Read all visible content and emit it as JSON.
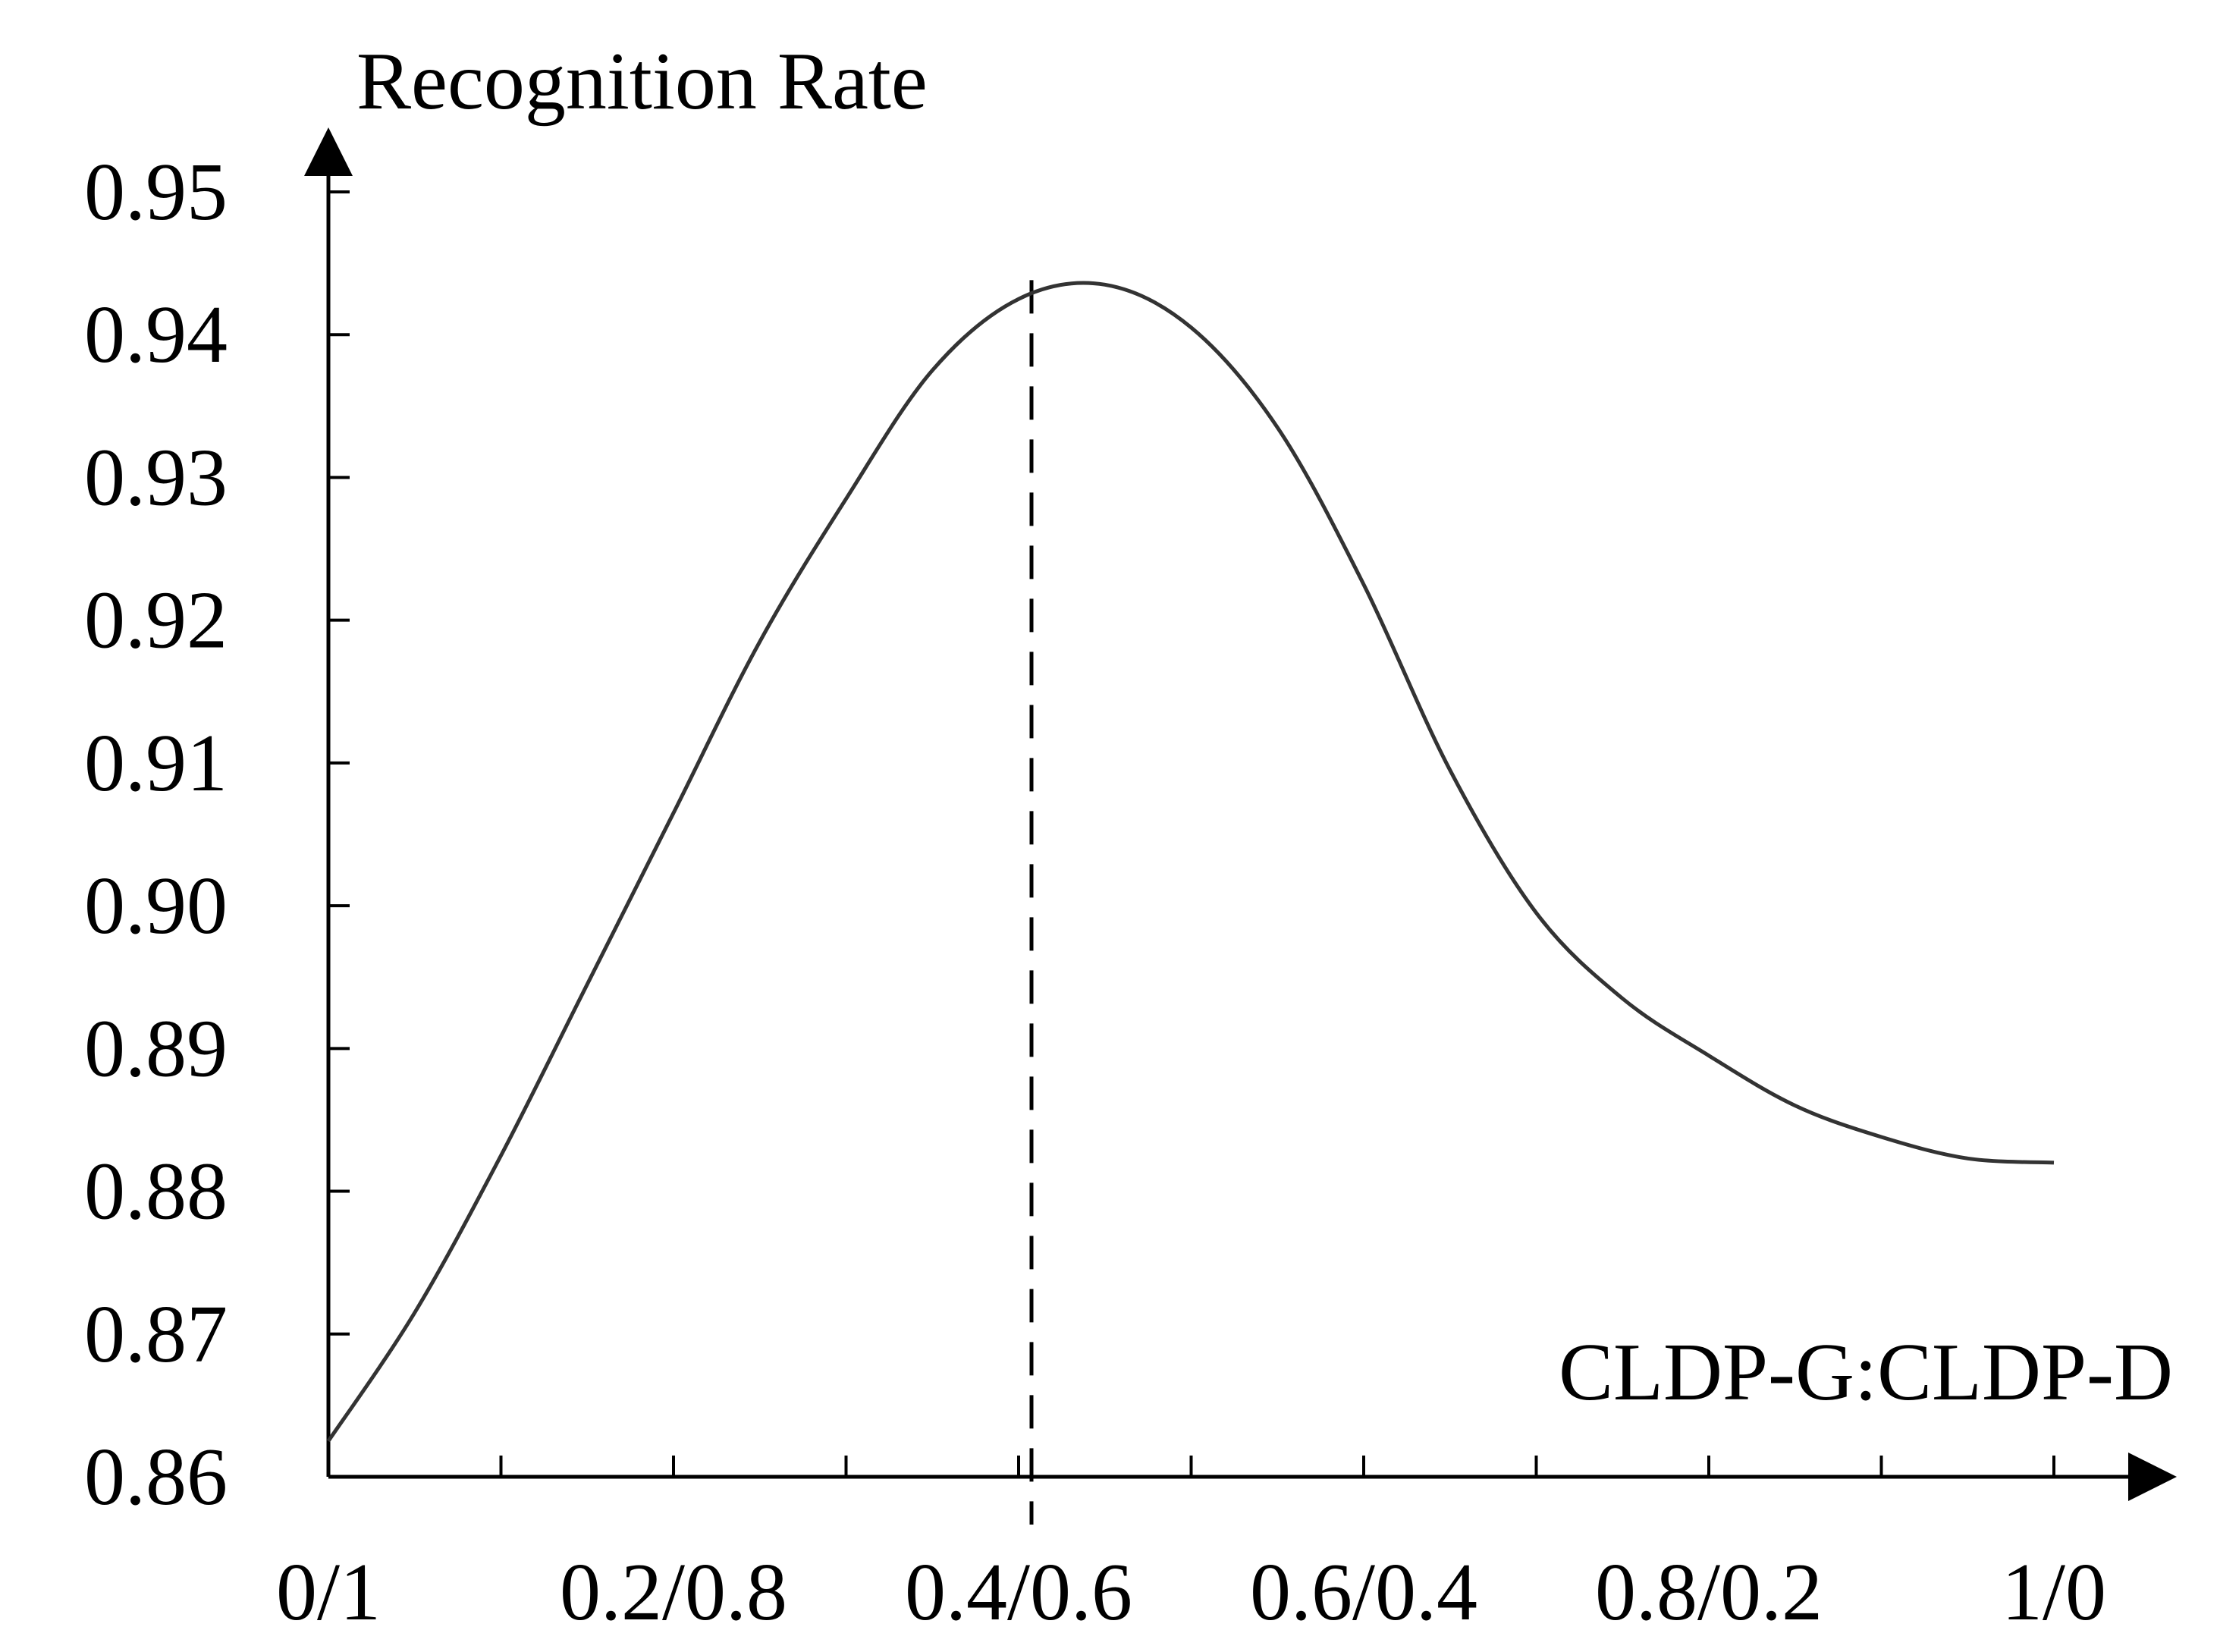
{
  "chart_data": {
    "type": "line",
    "title": "",
    "ylabel": "Recognition Rate",
    "xlabel": "CLDP-G:CLDP-D",
    "xlim": [
      0,
      1
    ],
    "ylim": [
      0.86,
      0.95
    ],
    "yticks": [
      0.86,
      0.87,
      0.88,
      0.89,
      0.9,
      0.91,
      0.92,
      0.93,
      0.94,
      0.95
    ],
    "ytick_labels": [
      "0.86",
      "0.87",
      "0.88",
      "0.89",
      "0.90",
      "0.91",
      "0.92",
      "0.93",
      "0.94",
      "0.95"
    ],
    "xticks": [
      0,
      0.1,
      0.2,
      0.3,
      0.4,
      0.5,
      0.6,
      0.7,
      0.8,
      0.9,
      1.0
    ],
    "xtick_labels": [
      {
        "value": 0,
        "label": "0/1"
      },
      {
        "value": 0.2,
        "label": "0.2/0.8"
      },
      {
        "value": 0.4,
        "label": "0.4/0.6"
      },
      {
        "value": 0.6,
        "label": "0.6/0.4"
      },
      {
        "value": 0.8,
        "label": "0.8/0.2"
      },
      {
        "value": 1.0,
        "label": "1/0"
      }
    ],
    "grid": false,
    "series": [
      {
        "name": "Recognition Rate",
        "color": "#333333",
        "x": [
          0.0,
          0.05,
          0.1,
          0.15,
          0.2,
          0.25,
          0.3,
          0.35,
          0.4,
          0.45,
          0.5,
          0.55,
          0.6,
          0.65,
          0.7,
          0.75,
          0.8,
          0.85,
          0.9,
          0.95,
          1.0
        ],
        "y": [
          0.8625,
          0.8715,
          0.8825,
          0.8945,
          0.9065,
          0.9185,
          0.9285,
          0.9375,
          0.9425,
          0.9435,
          0.9405,
          0.9335,
          0.9225,
          0.9095,
          0.8995,
          0.8935,
          0.8895,
          0.886,
          0.8838,
          0.8823,
          0.882
        ]
      }
    ],
    "annotations": [
      {
        "type": "vertical-dashed-line",
        "x": 0.4
      }
    ]
  }
}
